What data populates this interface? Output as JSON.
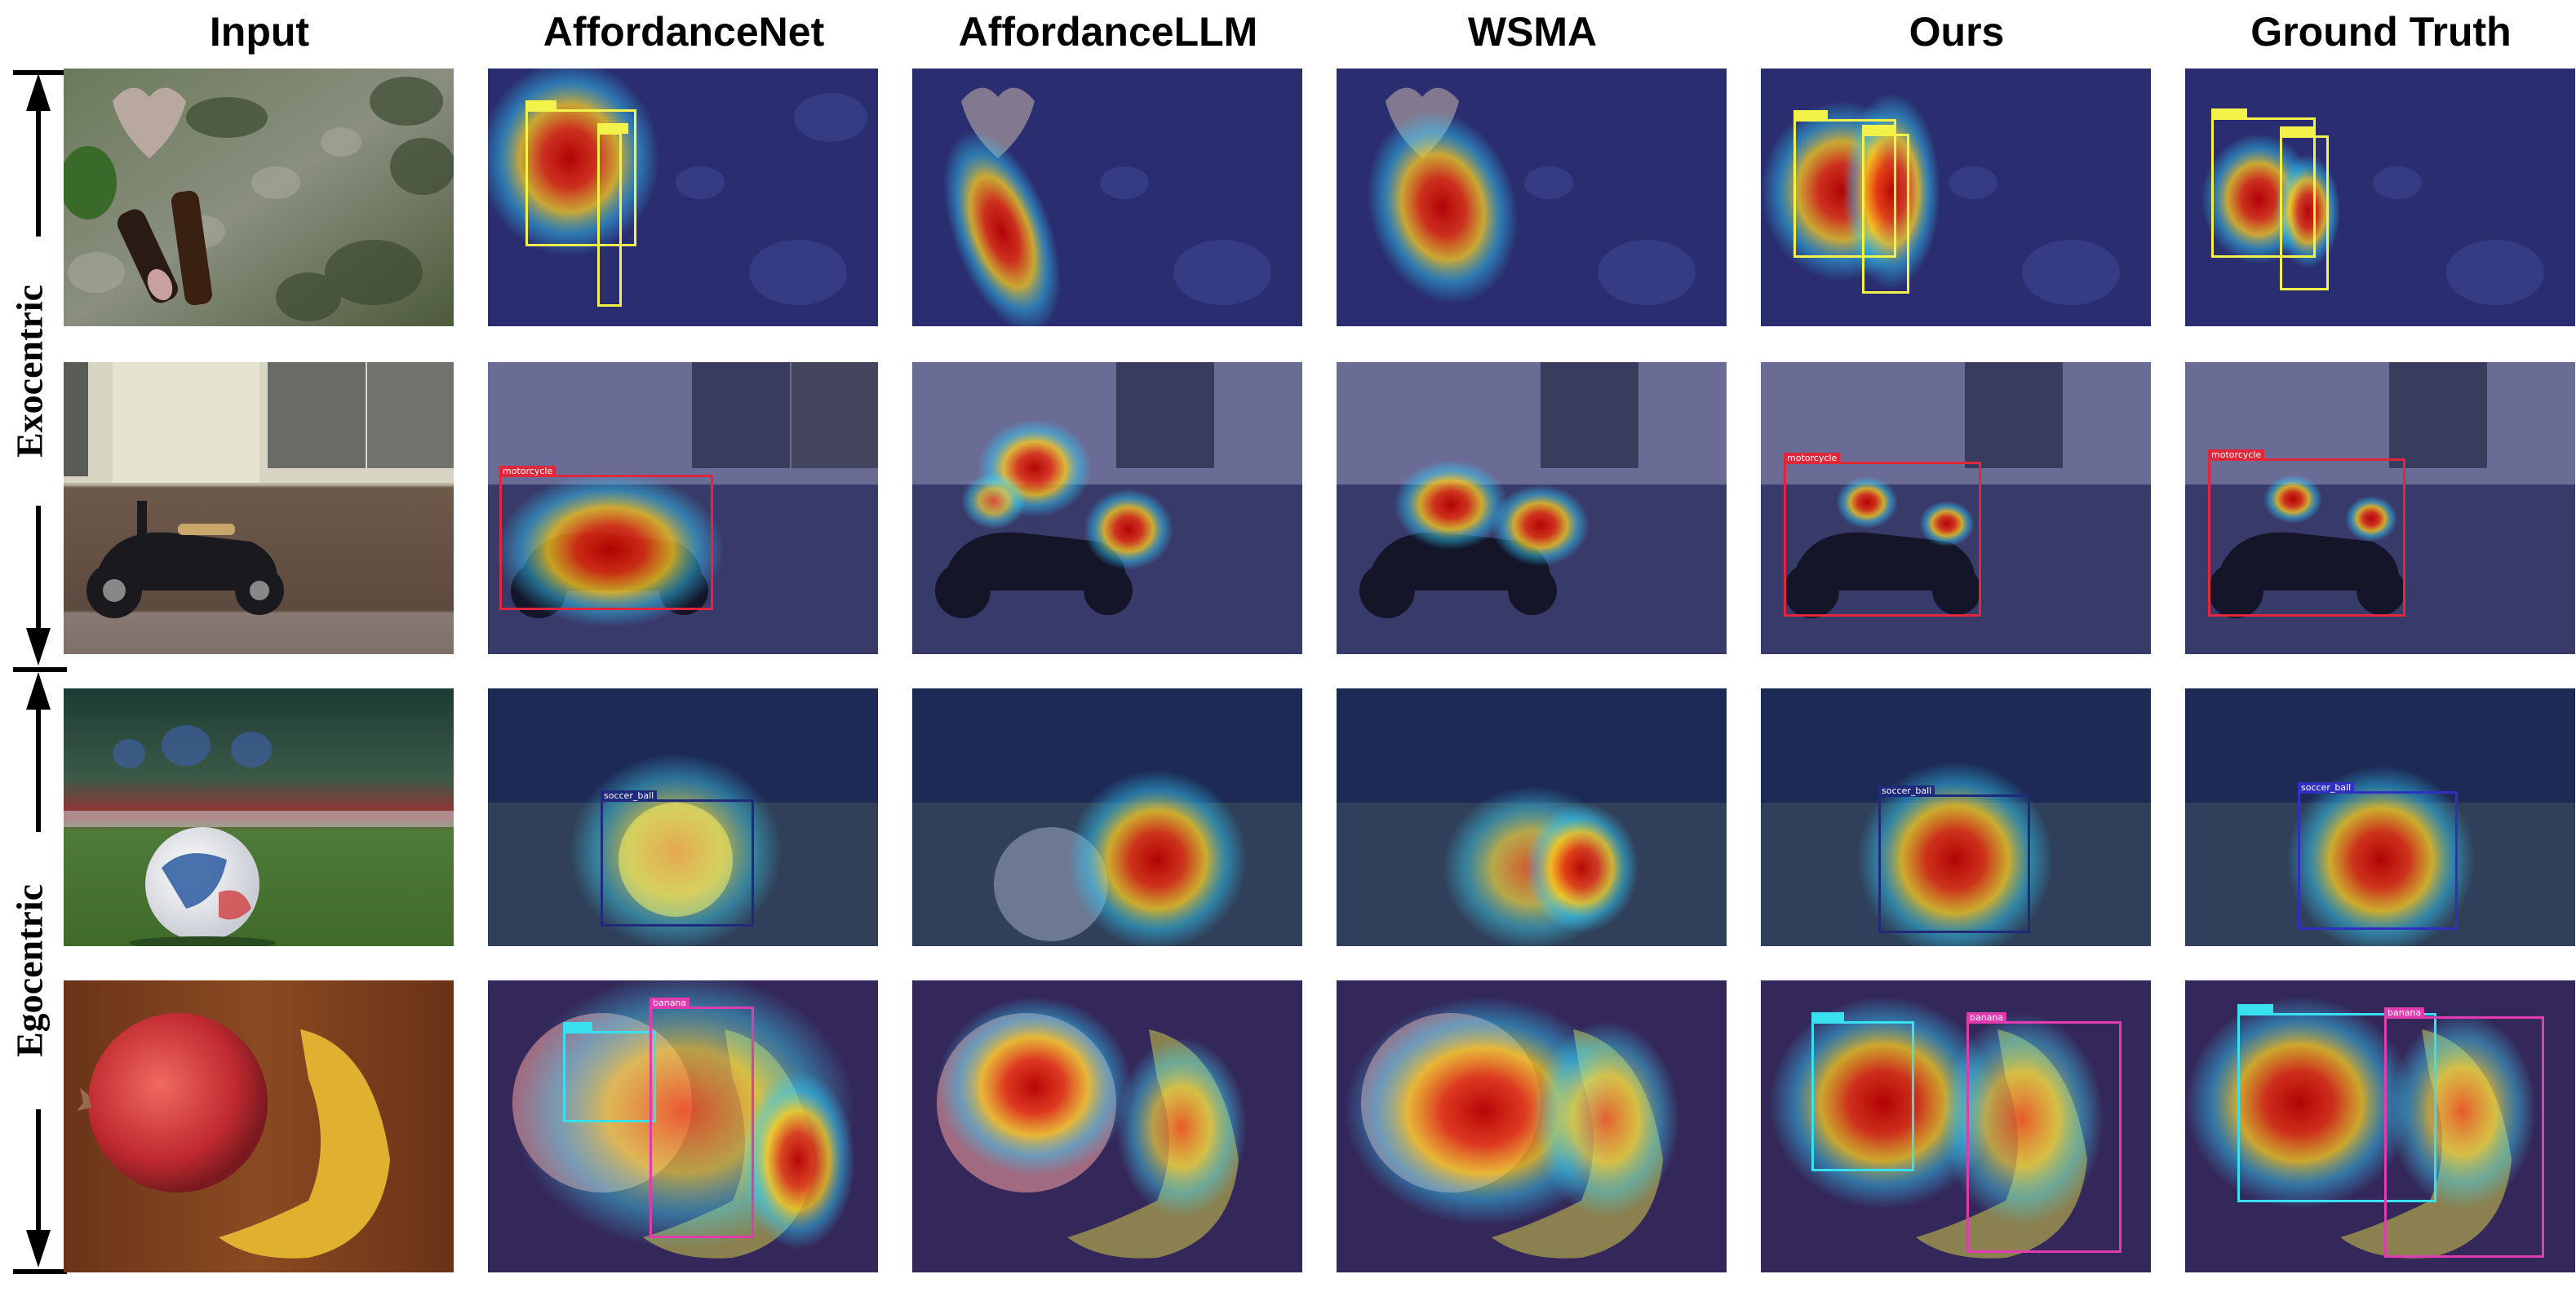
{
  "columns": [
    "Input",
    "AffordanceNet",
    "AffordanceLLM",
    "WSMA",
    "Ours",
    "Ground Truth"
  ],
  "row_groups": [
    "Exocentric",
    "Egocentric"
  ],
  "box_labels": {
    "motorcycle": "motorcycle",
    "soccer_ball": "soccer_ball",
    "banana": "banana"
  },
  "colors": {
    "heat_hot": "#d01010",
    "heat_warm": "#ffd020",
    "heat_cool": "#30c0ff",
    "overlay_blue": "#1a1a7a",
    "box_yellow": "#f2f24a",
    "box_red": "#e0283c",
    "box_navy": "#202a7a",
    "box_cyan": "#38e0f0",
    "box_magenta": "#e03cb0"
  }
}
